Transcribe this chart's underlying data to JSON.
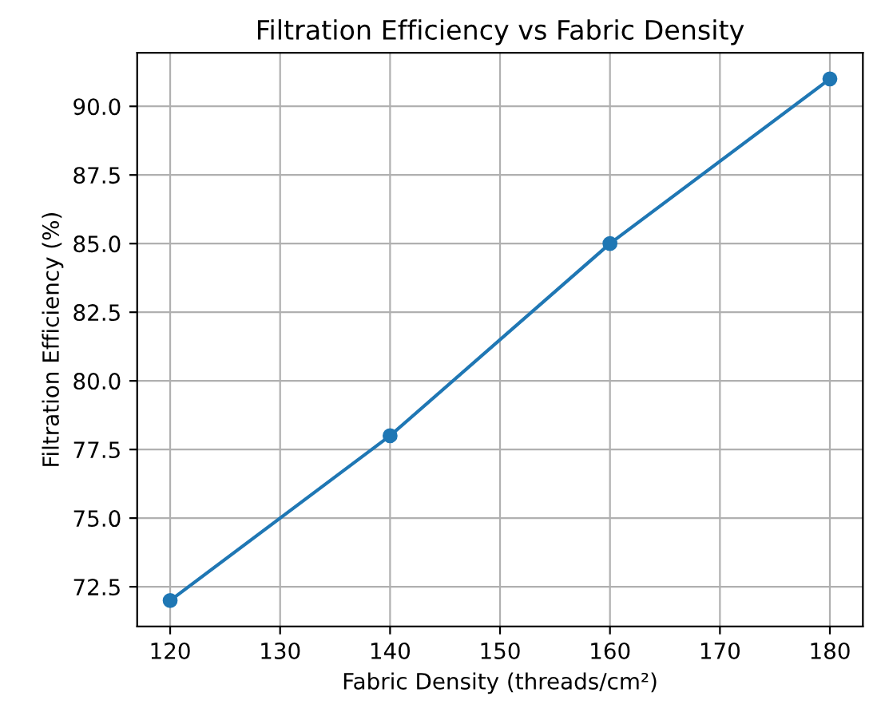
{
  "chart_data": {
    "type": "line",
    "title": "Filtration Efficiency vs Fabric Density",
    "xlabel": "Fabric Density (threads/cm²)",
    "ylabel": "Filtration Efficiency (%)",
    "x": [
      120,
      140,
      160,
      180
    ],
    "series": [
      {
        "color": "#1f77b4",
        "values": [
          72,
          78,
          85,
          91
        ]
      }
    ],
    "xlim": [
      117,
      183
    ],
    "xticks": [
      120,
      130,
      140,
      150,
      160,
      170,
      180
    ],
    "ylim": [
      71.05,
      91.95
    ],
    "yticks": [
      72.5,
      {
        "value": 75,
        "label": "75.0"
      },
      77.5,
      {
        "value": 80,
        "label": "80.0"
      },
      82.5,
      {
        "value": 85,
        "label": "85.0"
      },
      87.5,
      {
        "value": 90,
        "label": "90.0"
      }
    ],
    "grid": true,
    "marker": "circle",
    "line_style": "solid"
  }
}
